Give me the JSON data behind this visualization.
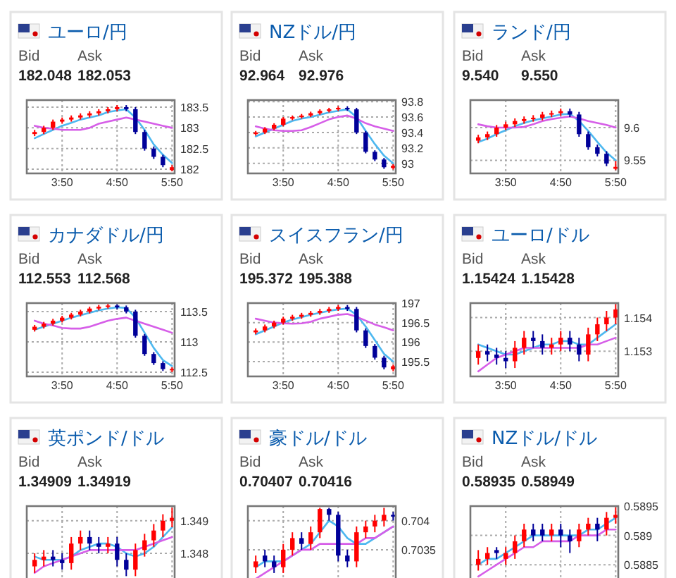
{
  "chart_data": [
    {
      "type": "candlestick",
      "title": "ユーロ/円",
      "annotations": [
        "Bid",
        "Ask",
        "182.048",
        "182.053"
      ],
      "x": [
        3.3333,
        3.5,
        3.6667,
        3.8333,
        4,
        4.1667,
        4.3333,
        4.5,
        4.6667,
        4.8333,
        5,
        5.1667,
        5.3333,
        5.5,
        5.6667,
        5.8333
      ],
      "ohlc": [
        [
          182.85,
          182.95,
          182.8,
          182.9
        ],
        [
          182.9,
          183.05,
          182.85,
          183.0
        ],
        [
          183.0,
          183.2,
          182.95,
          183.15
        ],
        [
          183.15,
          183.25,
          183.1,
          183.2
        ],
        [
          183.2,
          183.3,
          183.15,
          183.25
        ],
        [
          183.25,
          183.35,
          183.2,
          183.3
        ],
        [
          183.3,
          183.4,
          183.25,
          183.35
        ],
        [
          183.35,
          183.45,
          183.3,
          183.4
        ],
        [
          183.4,
          183.5,
          183.35,
          183.45
        ],
        [
          183.45,
          183.55,
          183.4,
          183.5
        ],
        [
          183.5,
          183.55,
          183.4,
          183.45
        ],
        [
          183.45,
          183.5,
          182.85,
          182.9
        ],
        [
          182.9,
          182.95,
          182.45,
          182.5
        ],
        [
          182.5,
          182.55,
          182.25,
          182.3
        ],
        [
          182.3,
          182.35,
          182.05,
          182.1
        ],
        [
          181.98,
          182.1,
          181.95,
          182.05
        ]
      ],
      "colors": [
        "#ff0000",
        "#ff0000",
        "#ff0000",
        "#ff0000",
        "#ff0000",
        "#ff0000",
        "#ff0000",
        "#ff0000",
        "#ff0000",
        "#ff0000",
        "#000099",
        "#000099",
        "#000099",
        "#000099",
        "#000099",
        "#ff0000"
      ],
      "series": [
        {
          "type": "line",
          "color": "#4db8f0",
          "values": [
            182.75,
            182.85,
            182.95,
            183.05,
            183.12,
            183.2,
            183.25,
            183.3,
            183.38,
            183.42,
            183.45,
            183.25,
            182.95,
            182.6,
            182.35,
            182.15
          ]
        },
        {
          "type": "line",
          "color": "#d65ee8",
          "values": [
            183.05,
            183.0,
            182.98,
            182.95,
            182.95,
            182.95,
            183.0,
            183.1,
            183.15,
            183.2,
            183.25,
            183.2,
            183.15,
            183.1,
            183.05,
            183.0
          ]
        }
      ],
      "xlim": [
        3.19,
        5.88
      ],
      "ylim": [
        181.9,
        183.67
      ],
      "xticks": [
        {
          "value": 3.8333,
          "label": "3:50"
        },
        {
          "value": 4.8333,
          "label": "4:50"
        },
        {
          "value": 5.8333,
          "label": "5:50"
        }
      ],
      "yticks": [
        182,
        182.5,
        183,
        183.5
      ],
      "grid": true
    },
    {
      "type": "candlestick",
      "title": "NZドル/円",
      "annotations": [
        "Bid",
        "Ask",
        "92.964",
        "92.976"
      ],
      "x": [
        3.3333,
        3.5,
        3.6667,
        3.8333,
        4,
        4.1667,
        4.3333,
        4.5,
        4.6667,
        4.8333,
        5,
        5.1667,
        5.3333,
        5.5,
        5.6667,
        5.8333
      ],
      "ohlc": [
        [
          93.38,
          93.42,
          93.36,
          93.4
        ],
        [
          93.4,
          93.47,
          93.38,
          93.45
        ],
        [
          93.45,
          93.52,
          93.43,
          93.5
        ],
        [
          93.5,
          93.6,
          93.48,
          93.58
        ],
        [
          93.58,
          93.62,
          93.56,
          93.6
        ],
        [
          93.6,
          93.64,
          93.58,
          93.62
        ],
        [
          93.62,
          93.67,
          93.6,
          93.65
        ],
        [
          93.65,
          93.7,
          93.63,
          93.68
        ],
        [
          93.68,
          93.72,
          93.66,
          93.7
        ],
        [
          93.7,
          93.74,
          93.68,
          93.72
        ],
        [
          93.72,
          93.74,
          93.68,
          93.7
        ],
        [
          93.7,
          93.72,
          93.38,
          93.4
        ],
        [
          93.4,
          93.42,
          93.13,
          93.15
        ],
        [
          93.15,
          93.17,
          93.03,
          93.05
        ],
        [
          93.05,
          93.07,
          92.93,
          92.95
        ],
        [
          92.94,
          92.99,
          92.92,
          92.97
        ]
      ],
      "colors": [
        "#ff0000",
        "#ff0000",
        "#ff0000",
        "#ff0000",
        "#ff0000",
        "#ff0000",
        "#ff0000",
        "#ff0000",
        "#ff0000",
        "#ff0000",
        "#000099",
        "#000099",
        "#000099",
        "#000099",
        "#000099",
        "#ff0000"
      ],
      "series": [
        {
          "type": "line",
          "color": "#4db8f0",
          "values": [
            93.35,
            93.4,
            93.45,
            93.5,
            93.55,
            93.58,
            93.6,
            93.63,
            93.66,
            93.68,
            93.7,
            93.6,
            93.42,
            93.25,
            93.1,
            93.0
          ]
        },
        {
          "type": "line",
          "color": "#d65ee8",
          "values": [
            93.48,
            93.45,
            93.43,
            93.42,
            93.42,
            93.43,
            93.47,
            93.52,
            93.57,
            93.6,
            93.62,
            93.58,
            93.52,
            93.48,
            93.45,
            93.42
          ]
        }
      ],
      "xlim": [
        3.19,
        5.88
      ],
      "ylim": [
        92.87,
        93.82
      ],
      "xticks": [
        {
          "value": 3.8333,
          "label": "3:50"
        },
        {
          "value": 4.8333,
          "label": "4:50"
        },
        {
          "value": 5.8333,
          "label": "5:50"
        }
      ],
      "yticks": [
        93,
        93.2,
        93.4,
        93.6,
        93.8
      ],
      "grid": true
    },
    {
      "type": "candlestick",
      "title": "ランド/円",
      "annotations": [
        "Bid",
        "Ask",
        "9.540",
        "9.550"
      ],
      "x": [
        3.3333,
        3.5,
        3.6667,
        3.8333,
        4,
        4.1667,
        4.3333,
        4.5,
        4.6667,
        4.8333,
        5,
        5.1667,
        5.3333,
        5.5,
        5.6667,
        5.8333
      ],
      "ohlc": [
        [
          9.58,
          9.589,
          9.576,
          9.585
        ],
        [
          9.585,
          9.594,
          9.581,
          9.59
        ],
        [
          9.59,
          9.604,
          9.586,
          9.6
        ],
        [
          9.6,
          9.609,
          9.596,
          9.605
        ],
        [
          9.605,
          9.614,
          9.601,
          9.61
        ],
        [
          9.61,
          9.617,
          9.606,
          9.613
        ],
        [
          9.613,
          9.619,
          9.609,
          9.615
        ],
        [
          9.615,
          9.624,
          9.611,
          9.62
        ],
        [
          9.62,
          9.626,
          9.616,
          9.622
        ],
        [
          9.622,
          9.629,
          9.618,
          9.625
        ],
        [
          9.625,
          9.629,
          9.616,
          9.62
        ],
        [
          9.62,
          9.624,
          9.586,
          9.59
        ],
        [
          9.59,
          9.594,
          9.566,
          9.57
        ],
        [
          9.57,
          9.574,
          9.556,
          9.56
        ],
        [
          9.56,
          9.564,
          9.541,
          9.545
        ],
        [
          9.537,
          9.549,
          9.535,
          9.54
        ]
      ],
      "colors": [
        "#ff0000",
        "#ff0000",
        "#ff0000",
        "#ff0000",
        "#ff0000",
        "#ff0000",
        "#ff0000",
        "#ff0000",
        "#ff0000",
        "#ff0000",
        "#000099",
        "#000099",
        "#000099",
        "#000099",
        "#000099",
        "#ff0000"
      ],
      "series": [
        {
          "type": "line",
          "color": "#4db8f0",
          "values": [
            9.578,
            9.583,
            9.59,
            9.596,
            9.602,
            9.607,
            9.611,
            9.614,
            9.617,
            9.62,
            9.621,
            9.61,
            9.595,
            9.578,
            9.562,
            9.55
          ]
        },
        {
          "type": "line",
          "color": "#d65ee8",
          "values": [
            9.605,
            9.602,
            9.6,
            9.6,
            9.6,
            9.601,
            9.605,
            9.61,
            9.613,
            9.615,
            9.617,
            9.614,
            9.61,
            9.607,
            9.604,
            9.6
          ]
        }
      ],
      "xlim": [
        3.19,
        5.88
      ],
      "ylim": [
        9.53,
        9.642
      ],
      "xticks": [
        {
          "value": 3.8333,
          "label": "3:50"
        },
        {
          "value": 4.8333,
          "label": "4:50"
        },
        {
          "value": 5.8333,
          "label": "5:50"
        }
      ],
      "yticks": [
        9.55,
        9.6
      ],
      "grid": true
    },
    {
      "type": "candlestick",
      "title": "カナダドル/円",
      "annotations": [
        "Bid",
        "Ask",
        "112.553",
        "112.568"
      ],
      "x": [
        3.3333,
        3.5,
        3.6667,
        3.8333,
        4,
        4.1667,
        4.3333,
        4.5,
        4.6667,
        4.8333,
        5,
        5.1667,
        5.3333,
        5.5,
        5.6667,
        5.8333
      ],
      "ohlc": [
        [
          113.2,
          113.28,
          113.17,
          113.25
        ],
        [
          113.25,
          113.33,
          113.22,
          113.3
        ],
        [
          113.3,
          113.38,
          113.27,
          113.35
        ],
        [
          113.35,
          113.43,
          113.32,
          113.4
        ],
        [
          113.4,
          113.48,
          113.37,
          113.45
        ],
        [
          113.45,
          113.53,
          113.42,
          113.5
        ],
        [
          113.5,
          113.58,
          113.47,
          113.55
        ],
        [
          113.55,
          113.61,
          113.52,
          113.58
        ],
        [
          113.58,
          113.63,
          113.55,
          113.6
        ],
        [
          113.6,
          113.62,
          113.54,
          113.57
        ],
        [
          113.57,
          113.6,
          113.47,
          113.5
        ],
        [
          113.5,
          113.53,
          113.07,
          113.1
        ],
        [
          113.1,
          113.13,
          112.77,
          112.8
        ],
        [
          112.8,
          112.83,
          112.62,
          112.65
        ],
        [
          112.65,
          112.68,
          112.52,
          112.55
        ],
        [
          112.53,
          112.58,
          112.5,
          112.555
        ]
      ],
      "colors": [
        "#ff0000",
        "#ff0000",
        "#ff0000",
        "#ff0000",
        "#ff0000",
        "#ff0000",
        "#ff0000",
        "#ff0000",
        "#ff0000",
        "#000099",
        "#000099",
        "#000099",
        "#000099",
        "#000099",
        "#000099",
        "#ff0000"
      ],
      "series": [
        {
          "type": "line",
          "color": "#4db8f0",
          "values": [
            113.2,
            113.25,
            113.3,
            113.35,
            113.4,
            113.44,
            113.48,
            113.52,
            113.55,
            113.57,
            113.56,
            113.4,
            113.15,
            112.9,
            112.7,
            112.6
          ]
        },
        {
          "type": "line",
          "color": "#d65ee8",
          "values": [
            113.35,
            113.3,
            113.27,
            113.23,
            113.22,
            113.22,
            113.25,
            113.3,
            113.35,
            113.38,
            113.4,
            113.35,
            113.3,
            113.25,
            113.2,
            113.15
          ]
        }
      ],
      "xlim": [
        3.19,
        5.88
      ],
      "ylim": [
        112.43,
        113.64
      ],
      "xticks": [
        {
          "value": 3.8333,
          "label": "3:50"
        },
        {
          "value": 4.8333,
          "label": "4:50"
        },
        {
          "value": 5.8333,
          "label": "5:50"
        }
      ],
      "yticks": [
        112.5,
        113,
        113.5
      ],
      "grid": true
    },
    {
      "type": "candlestick",
      "title": "スイスフラン/円",
      "annotations": [
        "Bid",
        "Ask",
        "195.372",
        "195.388"
      ],
      "x": [
        3.3333,
        3.5,
        3.6667,
        3.8333,
        4,
        4.1667,
        4.3333,
        4.5,
        4.6667,
        4.8333,
        5,
        5.1667,
        5.3333,
        5.5,
        5.6667,
        5.8333
      ],
      "ohlc": [
        [
          196.25,
          196.35,
          196.2,
          196.3
        ],
        [
          196.3,
          196.45,
          196.25,
          196.4
        ],
        [
          196.4,
          196.55,
          196.35,
          196.5
        ],
        [
          196.5,
          196.65,
          196.45,
          196.6
        ],
        [
          196.6,
          196.7,
          196.55,
          196.65
        ],
        [
          196.65,
          196.75,
          196.6,
          196.7
        ],
        [
          196.7,
          196.8,
          196.65,
          196.75
        ],
        [
          196.75,
          196.85,
          196.7,
          196.8
        ],
        [
          196.8,
          196.9,
          196.75,
          196.85
        ],
        [
          196.85,
          196.95,
          196.8,
          196.9
        ],
        [
          196.9,
          196.95,
          196.8,
          196.85
        ],
        [
          196.85,
          196.9,
          196.25,
          196.3
        ],
        [
          196.3,
          196.35,
          195.85,
          195.9
        ],
        [
          195.9,
          195.95,
          195.55,
          195.6
        ],
        [
          195.6,
          195.65,
          195.3,
          195.35
        ],
        [
          195.3,
          195.42,
          195.25,
          195.38
        ]
      ],
      "colors": [
        "#ff0000",
        "#ff0000",
        "#ff0000",
        "#ff0000",
        "#ff0000",
        "#ff0000",
        "#ff0000",
        "#ff0000",
        "#ff0000",
        "#ff0000",
        "#000099",
        "#000099",
        "#000099",
        "#000099",
        "#000099",
        "#ff0000"
      ],
      "series": [
        {
          "type": "line",
          "color": "#4db8f0",
          "values": [
            196.2,
            196.3,
            196.4,
            196.5,
            196.58,
            196.64,
            196.7,
            196.75,
            196.8,
            196.84,
            196.86,
            196.7,
            196.4,
            196.05,
            195.7,
            195.5
          ]
        },
        {
          "type": "line",
          "color": "#d65ee8",
          "values": [
            196.6,
            196.55,
            196.5,
            196.48,
            196.47,
            196.48,
            196.52,
            196.6,
            196.65,
            196.7,
            196.72,
            196.65,
            196.55,
            196.45,
            196.38,
            196.3
          ]
        }
      ],
      "xlim": [
        3.19,
        5.88
      ],
      "ylim": [
        195.12,
        197.0
      ],
      "xticks": [
        {
          "value": 3.8333,
          "label": "3:50"
        },
        {
          "value": 4.8333,
          "label": "4:50"
        },
        {
          "value": 5.8333,
          "label": "5:50"
        }
      ],
      "yticks": [
        195.5,
        196,
        196.5,
        197
      ],
      "grid": true
    },
    {
      "type": "candlestick",
      "title": "ユーロ/ドル",
      "annotations": [
        "Bid",
        "Ask",
        "1.15424",
        "1.15428"
      ],
      "x": [
        3.3333,
        3.5,
        3.6667,
        3.8333,
        4,
        4.1667,
        4.3333,
        4.5,
        4.6667,
        4.8333,
        5,
        5.1667,
        5.3333,
        5.5,
        5.6667,
        5.8333
      ],
      "ohlc": [
        [
          1.1528,
          1.1532,
          1.1526,
          1.153
        ],
        [
          1.153,
          1.1532,
          1.1527,
          1.1529
        ],
        [
          1.1529,
          1.1531,
          1.1526,
          1.1528
        ],
        [
          1.1528,
          1.153,
          1.1525,
          1.1527
        ],
        [
          1.1527,
          1.1533,
          1.1525,
          1.1531
        ],
        [
          1.1531,
          1.1536,
          1.1529,
          1.1534
        ],
        [
          1.1534,
          1.1536,
          1.1531,
          1.1533
        ],
        [
          1.1533,
          1.1535,
          1.1529,
          1.1531
        ],
        [
          1.1531,
          1.1534,
          1.1529,
          1.1532
        ],
        [
          1.1532,
          1.1536,
          1.153,
          1.1534
        ],
        [
          1.1534,
          1.1536,
          1.153,
          1.1532
        ],
        [
          1.1532,
          1.1534,
          1.1527,
          1.1529
        ],
        [
          1.1529,
          1.1537,
          1.1527,
          1.1535
        ],
        [
          1.1535,
          1.154,
          1.1533,
          1.1538
        ],
        [
          1.1538,
          1.1542,
          1.1536,
          1.154
        ],
        [
          1.154,
          1.1544,
          1.1538,
          1.15424
        ]
      ],
      "colors": [
        "#ff0000",
        "#000099",
        "#000099",
        "#000099",
        "#ff0000",
        "#ff0000",
        "#000099",
        "#000099",
        "#ff0000",
        "#ff0000",
        "#000099",
        "#000099",
        "#ff0000",
        "#ff0000",
        "#ff0000",
        "#ff0000"
      ],
      "series": [
        {
          "type": "line",
          "color": "#4db8f0",
          "values": [
            1.1532,
            1.1531,
            1.153,
            1.1529,
            1.1529,
            1.153,
            1.1531,
            1.1532,
            1.1532,
            1.1533,
            1.1533,
            1.1532,
            1.1532,
            1.1534,
            1.1536,
            1.1538
          ]
        },
        {
          "type": "line",
          "color": "#d65ee8",
          "values": [
            1.1524,
            1.1526,
            1.1528,
            1.1529,
            1.153,
            1.1531,
            1.1531,
            1.1531,
            1.1531,
            1.1531,
            1.1531,
            1.1531,
            1.1532,
            1.1532,
            1.1533,
            1.1534
          ]
        }
      ],
      "xlim": [
        3.19,
        5.88
      ],
      "ylim": [
        1.15225,
        1.15443
      ],
      "xticks": [
        {
          "value": 3.8333,
          "label": "3:50"
        },
        {
          "value": 4.8333,
          "label": "4:50"
        },
        {
          "value": 5.8333,
          "label": "5:50"
        }
      ],
      "yticks": [
        1.153,
        1.154
      ],
      "grid": true
    },
    {
      "type": "candlestick",
      "title": "英ポンド/ドル",
      "annotations": [
        "Bid",
        "Ask",
        "1.34909",
        "1.34919"
      ],
      "x": [
        3.3333,
        3.5,
        3.6667,
        3.8333,
        4,
        4.1667,
        4.3333,
        4.5,
        4.6667,
        4.8333,
        5,
        5.1667,
        5.3333,
        5.5,
        5.6667,
        5.8333
      ],
      "ohlc": [
        [
          1.3476,
          1.348,
          1.3474,
          1.3478
        ],
        [
          1.3478,
          1.3481,
          1.3476,
          1.3479
        ],
        [
          1.3479,
          1.3481,
          1.3476,
          1.3478
        ],
        [
          1.3478,
          1.348,
          1.3475,
          1.3477
        ],
        [
          1.3477,
          1.3485,
          1.3475,
          1.3483
        ],
        [
          1.3483,
          1.3487,
          1.3481,
          1.3485
        ],
        [
          1.3485,
          1.3487,
          1.3481,
          1.3483
        ],
        [
          1.3483,
          1.3485,
          1.348,
          1.3482
        ],
        [
          1.3482,
          1.3485,
          1.348,
          1.3483
        ],
        [
          1.3483,
          1.3485,
          1.3476,
          1.3478
        ],
        [
          1.3478,
          1.348,
          1.3473,
          1.3475
        ],
        [
          1.3475,
          1.3483,
          1.3473,
          1.3481
        ],
        [
          1.3481,
          1.3486,
          1.3479,
          1.3484
        ],
        [
          1.3484,
          1.3489,
          1.3482,
          1.3487
        ],
        [
          1.3487,
          1.3492,
          1.3485,
          1.349
        ],
        [
          1.349,
          1.3494,
          1.3488,
          1.34909
        ]
      ],
      "colors": [
        "#ff0000",
        "#ff0000",
        "#000099",
        "#000099",
        "#ff0000",
        "#ff0000",
        "#000099",
        "#000099",
        "#ff0000",
        "#000099",
        "#000099",
        "#ff0000",
        "#ff0000",
        "#ff0000",
        "#ff0000",
        "#ff0000"
      ],
      "series": [
        {
          "type": "line",
          "color": "#4db8f0",
          "values": [
            1.3479,
            1.3478,
            1.3478,
            1.3478,
            1.3479,
            1.3481,
            1.3482,
            1.3483,
            1.3483,
            1.3482,
            1.348,
            1.3479,
            1.348,
            1.3482,
            1.3485,
            1.3488
          ]
        },
        {
          "type": "line",
          "color": "#d65ee8",
          "values": [
            1.3474,
            1.3476,
            1.3477,
            1.3478,
            1.3479,
            1.348,
            1.3481,
            1.3481,
            1.3481,
            1.3481,
            1.3481,
            1.3481,
            1.3482,
            1.3483,
            1.3484,
            1.3485
          ]
        }
      ],
      "xlim": [
        3.19,
        5.88
      ],
      "ylim": [
        1.3472,
        1.34945
      ],
      "xticks": [
        {
          "value": 3.8333,
          "label": null
        },
        {
          "value": 4.8333,
          "label": null
        },
        {
          "value": 5.8333,
          "label": null
        }
      ],
      "yticks": [
        1.348,
        1.349
      ],
      "grid": true,
      "tick_labels": "y"
    },
    {
      "type": "candlestick",
      "title": "豪ドル/ドル",
      "annotations": [
        "Bid",
        "Ask",
        "0.70407",
        "0.70416"
      ],
      "x": [
        3.3333,
        3.5,
        3.6667,
        3.8333,
        4,
        4.1667,
        4.3333,
        4.5,
        4.6667,
        4.8333,
        5,
        5.1667,
        5.3333,
        5.5,
        5.6667,
        5.8333
      ],
      "ohlc": [
        [
          0.7032,
          0.7034,
          0.7031,
          0.7033
        ],
        [
          0.7034,
          0.7035,
          0.7032,
          0.7033
        ],
        [
          0.7033,
          0.7034,
          0.7031,
          0.7032
        ],
        [
          0.7032,
          0.7036,
          0.7031,
          0.7035
        ],
        [
          0.7035,
          0.7038,
          0.7034,
          0.7037
        ],
        [
          0.7037,
          0.7038,
          0.7035,
          0.7036
        ],
        [
          0.7036,
          0.7039,
          0.7035,
          0.7038
        ],
        [
          0.7038,
          0.70422,
          0.7037,
          0.7042
        ],
        [
          0.7042,
          0.70422,
          0.704,
          0.7041
        ],
        [
          0.7041,
          0.70415,
          0.7033,
          0.7034
        ],
        [
          0.7034,
          0.7035,
          0.7032,
          0.7033
        ],
        [
          0.7033,
          0.7039,
          0.7032,
          0.7038
        ],
        [
          0.7038,
          0.704,
          0.7037,
          0.7039
        ],
        [
          0.7039,
          0.7041,
          0.7038,
          0.704
        ],
        [
          0.704,
          0.70422,
          0.7039,
          0.7041
        ],
        [
          0.7041,
          0.70415,
          0.704,
          0.70407
        ]
      ],
      "colors": [
        "#ff0000",
        "#000099",
        "#000099",
        "#ff0000",
        "#ff0000",
        "#000099",
        "#ff0000",
        "#ff0000",
        "#000099",
        "#000099",
        "#000099",
        "#ff0000",
        "#ff0000",
        "#ff0000",
        "#ff0000",
        "#000099"
      ],
      "series": [
        {
          "type": "line",
          "color": "#4db8f0",
          "values": [
            0.7032,
            0.7033,
            0.7033,
            0.7033,
            0.7034,
            0.7035,
            0.7036,
            0.7038,
            0.704,
            0.7039,
            0.7037,
            0.7036,
            0.7036,
            0.7037,
            0.7038,
            0.7039
          ]
        },
        {
          "type": "line",
          "color": "#d65ee8",
          "values": [
            0.703,
            0.7031,
            0.7032,
            0.7033,
            0.7034,
            0.7035,
            0.7035,
            0.7036,
            0.7036,
            0.7036,
            0.7036,
            0.7036,
            0.7037,
            0.7037,
            0.7038,
            0.7039
          ]
        }
      ],
      "xlim": [
        3.19,
        5.88
      ],
      "ylim": [
        0.70299,
        0.70425
      ],
      "xticks": [
        {
          "value": 3.8333,
          "label": null
        },
        {
          "value": 4.8333,
          "label": null
        },
        {
          "value": 5.8333,
          "label": null
        }
      ],
      "yticks": [
        0.7035,
        0.704
      ],
      "grid": true,
      "tick_labels": "y"
    },
    {
      "type": "candlestick",
      "title": "NZドル/ドル",
      "annotations": [
        "Bid",
        "Ask",
        "0.58935",
        "0.58949"
      ],
      "x": [
        3.3333,
        3.5,
        3.6667,
        3.8333,
        4,
        4.1667,
        4.3333,
        4.5,
        4.6667,
        4.8333,
        5,
        5.1667,
        5.3333,
        5.5,
        5.6667,
        5.8333
      ],
      "ohlc": [
        [
          0.5885,
          0.58875,
          0.5884,
          0.5886
        ],
        [
          0.5886,
          0.5888,
          0.5885,
          0.5887
        ],
        [
          0.58875,
          0.5888,
          0.5886,
          0.5887
        ],
        [
          0.5886,
          0.5888,
          0.5885,
          0.5887
        ],
        [
          0.5887,
          0.589,
          0.5886,
          0.5889
        ],
        [
          0.5889,
          0.5892,
          0.5888,
          0.5891
        ],
        [
          0.5891,
          0.5892,
          0.5889,
          0.589
        ],
        [
          0.5891,
          0.5892,
          0.5889,
          0.589
        ],
        [
          0.589,
          0.5892,
          0.5889,
          0.5891
        ],
        [
          0.5891,
          0.5892,
          0.5888,
          0.589
        ],
        [
          0.589,
          0.5891,
          0.5887,
          0.5889
        ],
        [
          0.5889,
          0.5892,
          0.5888,
          0.5891
        ],
        [
          0.5891,
          0.5893,
          0.589,
          0.5892
        ],
        [
          0.5892,
          0.5893,
          0.5889,
          0.5891
        ],
        [
          0.5891,
          0.5894,
          0.589,
          0.5893
        ],
        [
          0.5893,
          0.58948,
          0.5892,
          0.58935
        ]
      ],
      "colors": [
        "#ff0000",
        "#ff0000",
        "#000099",
        "#ff0000",
        "#ff0000",
        "#ff0000",
        "#000099",
        "#000099",
        "#ff0000",
        "#000099",
        "#000099",
        "#ff0000",
        "#ff0000",
        "#000099",
        "#ff0000",
        "#ff0000"
      ],
      "series": [
        {
          "type": "line",
          "color": "#4db8f0",
          "values": [
            0.5885,
            0.5886,
            0.5886,
            0.5887,
            0.5888,
            0.5889,
            0.589,
            0.589,
            0.589,
            0.589,
            0.589,
            0.589,
            0.5891,
            0.5891,
            0.5892,
            0.5893
          ]
        },
        {
          "type": "line",
          "color": "#d65ee8",
          "values": [
            0.5883,
            0.5884,
            0.5885,
            0.5886,
            0.5887,
            0.5888,
            0.5888,
            0.5889,
            0.5889,
            0.5889,
            0.5889,
            0.589,
            0.589,
            0.589,
            0.5891,
            0.5891
          ]
        }
      ],
      "xlim": [
        3.19,
        5.88
      ],
      "ylim": [
        0.58825,
        0.5895
      ],
      "xticks": [
        {
          "value": 3.8333,
          "label": null
        },
        {
          "value": 4.8333,
          "label": null
        },
        {
          "value": 5.8333,
          "label": null
        }
      ],
      "yticks": [
        0.5885,
        0.589,
        0.5895
      ],
      "grid": true,
      "tick_labels": "y"
    }
  ]
}
